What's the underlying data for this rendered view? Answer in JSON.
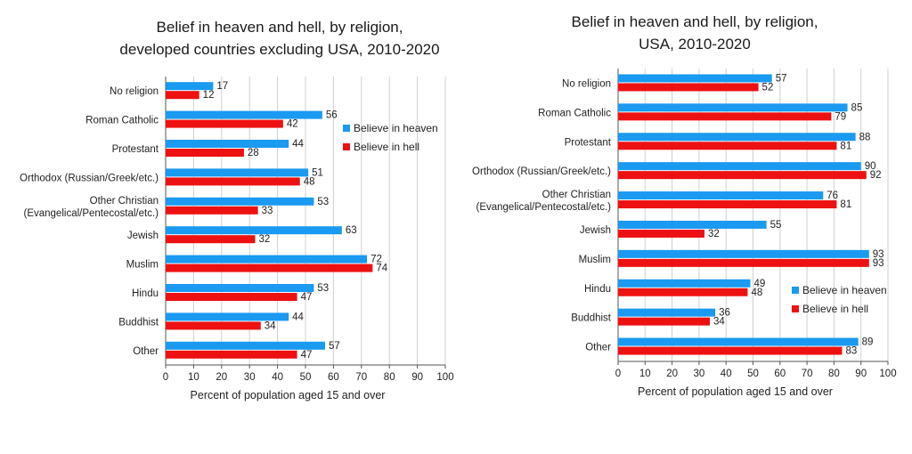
{
  "chart_data": [
    {
      "type": "bar",
      "orientation": "horizontal",
      "title": [
        "Belief in heaven and hell, by religion,",
        "developed countries excluding USA, 2010-2020"
      ],
      "xlabel": "Percent of population aged 15 and over",
      "xlim": [
        0,
        100
      ],
      "xticks": [
        0,
        10,
        20,
        30,
        40,
        50,
        60,
        70,
        80,
        90,
        100
      ],
      "grid": true,
      "legend_position": "upper-right",
      "categories": [
        [
          "No religion"
        ],
        [
          "Roman Catholic"
        ],
        [
          "Protestant"
        ],
        [
          "Orthodox (Russian/Greek/etc.)"
        ],
        [
          "Other Christian",
          "(Evangelical/Pentecostal/etc.)"
        ],
        [
          "Jewish"
        ],
        [
          "Muslim"
        ],
        [
          "Hindu"
        ],
        [
          "Buddhist"
        ],
        [
          "Other"
        ]
      ],
      "series": [
        {
          "name": "Believe in heaven",
          "color": "#1a9af0",
          "values": [
            17,
            56,
            44,
            51,
            53,
            63,
            72,
            53,
            44,
            57
          ]
        },
        {
          "name": "Believe in hell",
          "color": "#ee1111",
          "values": [
            12,
            42,
            28,
            48,
            33,
            32,
            74,
            47,
            34,
            47
          ]
        }
      ]
    },
    {
      "type": "bar",
      "orientation": "horizontal",
      "title": [
        "Belief in heaven and hell, by religion,",
        "USA, 2010-2020"
      ],
      "xlabel": "Percent of population aged 15 and over",
      "xlim": [
        0,
        100
      ],
      "xticks": [
        0,
        10,
        20,
        30,
        40,
        50,
        60,
        70,
        80,
        90,
        100
      ],
      "grid": true,
      "legend_position": "lower-right",
      "categories": [
        [
          "No religion"
        ],
        [
          "Roman Catholic"
        ],
        [
          "Protestant"
        ],
        [
          "Orthodox (Russian/Greek/etc.)"
        ],
        [
          "Other Christian",
          "(Evangelical/Pentecostal/etc.)"
        ],
        [
          "Jewish"
        ],
        [
          "Muslim"
        ],
        [
          "Hindu"
        ],
        [
          "Buddhist"
        ],
        [
          "Other"
        ]
      ],
      "series": [
        {
          "name": "Believe in heaven",
          "color": "#1a9af0",
          "values": [
            57,
            85,
            88,
            90,
            76,
            55,
            93,
            49,
            36,
            89
          ]
        },
        {
          "name": "Believe in hell",
          "color": "#ee1111",
          "values": [
            52,
            79,
            81,
            92,
            81,
            32,
            93,
            48,
            34,
            83
          ]
        }
      ]
    }
  ]
}
